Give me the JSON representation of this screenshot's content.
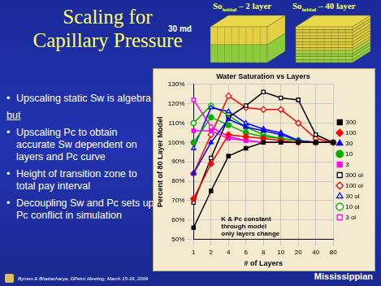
{
  "slide": {
    "title": "Scaling for Capillary Pressure",
    "image_labels": [
      {
        "main": "So",
        "sub": "initial",
        "rest": " – 2 layer"
      },
      {
        "main": "So",
        "sub": "initial",
        "rest": " – 40 layer"
      }
    ],
    "image_note": "30 md",
    "bullets_before": [
      "Upscaling static Sw is algebra"
    ],
    "connector": "but",
    "bullets_after": [
      "Upscaling Pc to obtain accurate Sw dependent on layers and Pc curve",
      "Height of transition zone to total pay interval",
      "Decoupling Sw and Pc sets up Pc conflict in simulation"
    ],
    "footer": "Byrnes & Bhattacharya, DPetro Meeting, March 15-16, 2004",
    "region": "Mississippian"
  },
  "chart_data": {
    "type": "line",
    "title": "Water Saturation vs Layers",
    "x_label": "# of Layers",
    "y_label": "Percent of 80 Layer Model",
    "annotation": [
      "K & Pc constant",
      "through model",
      "only layers change"
    ],
    "categories": [
      "1",
      "2",
      "4",
      "6",
      "8",
      "10",
      "20",
      "40",
      "80"
    ],
    "ylim": [
      50,
      130
    ],
    "yticks": [
      {
        "value": 50,
        "label": "50%"
      },
      {
        "value": 60,
        "label": "60%"
      },
      {
        "value": 70,
        "label": "70%"
      },
      {
        "value": 80,
        "label": "80%"
      },
      {
        "value": 90,
        "label": "90%"
      },
      {
        "value": 100,
        "label": "100%"
      },
      {
        "value": 110,
        "label": "110%"
      },
      {
        "value": 120,
        "label": "120%"
      },
      {
        "value": 130,
        "label": "130%"
      }
    ],
    "grid": true,
    "legend": "right",
    "series": [
      {
        "name": "300",
        "color": "#000000",
        "marker": "square",
        "values": [
          56,
          75,
          93,
          97,
          100,
          100,
          100,
          100,
          100
        ]
      },
      {
        "name": "100",
        "color": "#ff0000",
        "marker": "diamond",
        "values": [
          71,
          89,
          104,
          103,
          102,
          101,
          100,
          100,
          100
        ]
      },
      {
        "name": "30",
        "color": "#0000ff",
        "marker": "triangle",
        "values": [
          84,
          100,
          112,
          108,
          106,
          104,
          101,
          100,
          100
        ]
      },
      {
        "name": "10",
        "color": "#00b000",
        "marker": "circle",
        "values": [
          100,
          113,
          109,
          105,
          103,
          102,
          101,
          100,
          100
        ]
      },
      {
        "name": "3",
        "color": "#ff00ff",
        "marker": "square",
        "values": [
          106,
          106,
          102,
          101,
          100,
          100,
          100,
          100,
          100
        ]
      },
      {
        "name": "300 oi",
        "color": "#000000",
        "marker": "open_square",
        "values": [
          69,
          92,
          113,
          119,
          126,
          123,
          122,
          104,
          100
        ]
      },
      {
        "name": "100 oi",
        "color": "#ff0000",
        "marker": "open_diamond",
        "values": [
          84,
          104,
          124,
          118,
          117,
          117,
          110,
          102,
          100
        ]
      },
      {
        "name": "30 oi",
        "color": "#0000ff",
        "marker": "open_triangle",
        "values": [
          97,
          118,
          116,
          110,
          107,
          105,
          101,
          100,
          100
        ]
      },
      {
        "name": "10 oi",
        "color": "#00b000",
        "marker": "open_circle",
        "values": [
          110,
          119,
          114,
          108,
          104,
          102,
          101,
          100,
          100
        ]
      },
      {
        "name": "3 oi",
        "color": "#ff00ff",
        "marker": "open_square",
        "values": [
          122,
          108,
          103,
          101,
          100,
          100,
          100,
          100,
          100
        ]
      }
    ]
  }
}
